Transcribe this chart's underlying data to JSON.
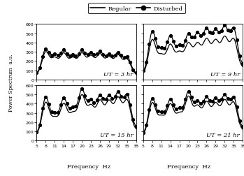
{
  "xlabel": "Frequency  Hz",
  "ylabel": "Power Spectrum  a.u.",
  "xlim": [
    5,
    38
  ],
  "ylim": [
    0,
    600
  ],
  "yticks": [
    0,
    100,
    200,
    300,
    400,
    500,
    600
  ],
  "xticks": [
    5,
    8,
    11,
    14,
    17,
    20,
    23,
    26,
    29,
    32,
    35,
    38
  ],
  "labels": [
    "UT = 3 hr",
    "UT = 9 hr",
    "UT = 15 hr",
    "UT = 21 hr"
  ],
  "panels": [
    {
      "peaks": [
        8,
        11,
        14,
        17,
        20,
        23,
        26,
        29,
        32,
        35
      ],
      "reg_amps": [
        240,
        170,
        220,
        170,
        220,
        190,
        210,
        180,
        200,
        160
      ],
      "dist_amps": [
        260,
        190,
        240,
        185,
        240,
        210,
        225,
        195,
        215,
        175
      ],
      "reg_base": 55,
      "dist_base": 65,
      "sigma": 1.2,
      "trend_reg": 0.0,
      "trend_dist": 0.0
    },
    {
      "peaks": [
        8,
        11,
        14,
        17,
        20,
        23,
        26,
        29,
        32,
        35
      ],
      "reg_amps": [
        360,
        180,
        290,
        200,
        290,
        280,
        320,
        300,
        330,
        310
      ],
      "dist_amps": [
        430,
        220,
        360,
        240,
        360,
        360,
        400,
        380,
        410,
        390
      ],
      "reg_base": 60,
      "dist_base": 75,
      "sigma": 1.2,
      "trend_reg": 2.0,
      "trend_dist": 2.5
    },
    {
      "peaks": [
        8,
        11,
        14,
        17,
        20,
        23,
        26,
        29,
        32,
        35
      ],
      "reg_amps": [
        340,
        160,
        310,
        200,
        390,
        270,
        320,
        310,
        340,
        320
      ],
      "dist_amps": [
        380,
        185,
        350,
        230,
        430,
        300,
        350,
        340,
        370,
        350
      ],
      "reg_base": 65,
      "dist_base": 75,
      "sigma": 1.2,
      "trend_reg": 1.5,
      "trend_dist": 2.0
    },
    {
      "peaks": [
        8,
        11,
        14,
        17,
        20,
        23,
        26,
        29,
        32,
        35
      ],
      "reg_amps": [
        340,
        180,
        310,
        200,
        380,
        270,
        310,
        290,
        320,
        300
      ],
      "dist_amps": [
        370,
        200,
        340,
        225,
        410,
        295,
        335,
        315,
        345,
        325
      ],
      "reg_base": 60,
      "dist_base": 72,
      "sigma": 1.2,
      "trend_reg": 1.5,
      "trend_dist": 2.0
    }
  ]
}
